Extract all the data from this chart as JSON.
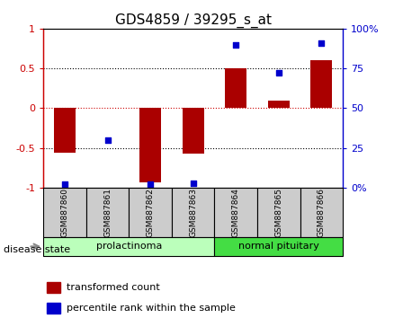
{
  "title": "GDS4859 / 39295_s_at",
  "samples": [
    "GSM887860",
    "GSM887861",
    "GSM887862",
    "GSM887863",
    "GSM887864",
    "GSM887865",
    "GSM887866"
  ],
  "bar_values": [
    -0.56,
    0.0,
    -0.93,
    -0.57,
    0.5,
    0.1,
    0.6
  ],
  "percentile_values": [
    2,
    30,
    2,
    3,
    90,
    72,
    91
  ],
  "groups": [
    {
      "label": "prolactinoma",
      "start": 0,
      "end": 4,
      "color": "#bbffbb"
    },
    {
      "label": "normal pituitary",
      "start": 4,
      "end": 7,
      "color": "#44dd44"
    }
  ],
  "bar_color": "#aa0000",
  "dot_color": "#0000cc",
  "ylim_left": [
    -1.0,
    1.0
  ],
  "ylim_right": [
    0,
    100
  ],
  "yticks_left": [
    -1,
    -0.5,
    0,
    0.5,
    1
  ],
  "yticks_right": [
    0,
    25,
    50,
    75,
    100
  ],
  "ytick_labels_left": [
    "-1",
    "-0.5",
    "0",
    "0.5",
    "1"
  ],
  "ytick_labels_right": [
    "0%",
    "25",
    "50",
    "75",
    "100%"
  ],
  "hlines": [
    0.5,
    0.0,
    -0.5
  ],
  "hline_colors": [
    "black",
    "#cc0000",
    "black"
  ],
  "hline_styles": [
    "dotted",
    "dotted",
    "dotted"
  ],
  "disease_state_label": "disease state",
  "legend_bar_label": "transformed count",
  "legend_dot_label": "percentile rank within the sample",
  "bg_color": "#ffffff",
  "plot_bg_color": "#ffffff",
  "sample_bg_color": "#cccccc"
}
